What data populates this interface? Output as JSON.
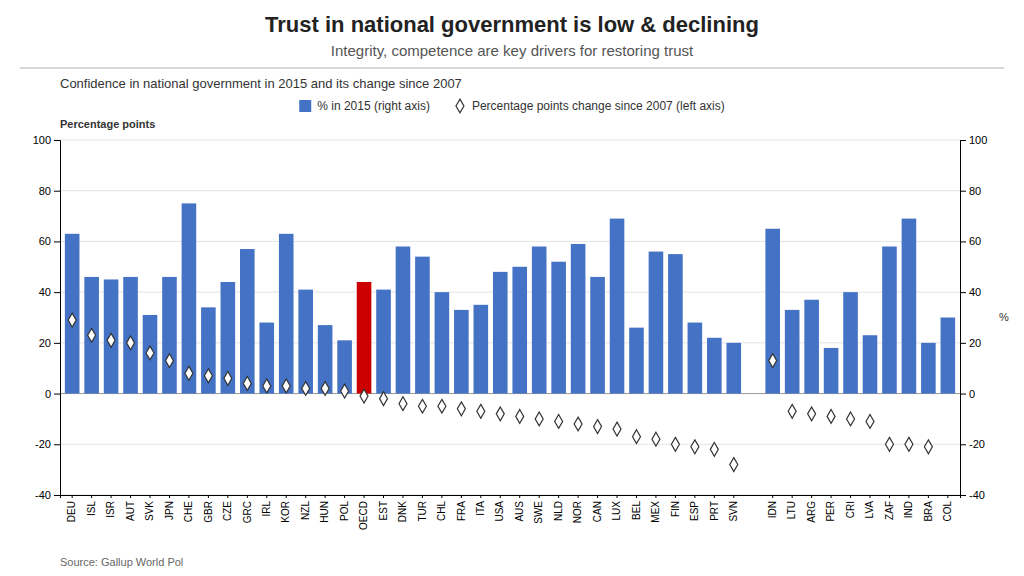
{
  "chart_data": {
    "type": "bar",
    "title": "Trust in national government is low & declining",
    "subtitle": "Integrity, competence are key drivers for restoring trust",
    "annotations": [
      "Confidence in national government in 2015 and its change since 2007",
      "Source: Gallup World Pol"
    ],
    "y_label": "Percentage points",
    "y2_label": "%",
    "categories": [
      "DEU",
      "ISL",
      "ISR",
      "AUT",
      "SVK",
      "JPN",
      "CHE",
      "GBR",
      "CZE",
      "GRC",
      "IRL",
      "KOR",
      "NZL",
      "HUN",
      "POL",
      "OECD",
      "EST",
      "DNK",
      "TUR",
      "CHL",
      "FRA",
      "ITA",
      "USA",
      "AUS",
      "SWE",
      "NLD",
      "NOR",
      "CAN",
      "LUX",
      "BEL",
      "MEX",
      "FIN",
      "ESP",
      "PRT",
      "SVN",
      null,
      "IDN",
      "LTU",
      "ARG",
      "PER",
      "CRI",
      "LVA",
      "ZAF",
      "IND",
      "BRA",
      "COL"
    ],
    "series": [
      {
        "name": "% in 2015 (right axis)",
        "type": "bar",
        "axis": "y2",
        "color": "#4472c4",
        "colors": [
          "#4472c4",
          "#4472c4",
          "#4472c4",
          "#4472c4",
          "#4472c4",
          "#4472c4",
          "#4472c4",
          "#4472c4",
          "#4472c4",
          "#4472c4",
          "#4472c4",
          "#4472c4",
          "#4472c4",
          "#4472c4",
          "#4472c4",
          "#cc0000",
          "#4472c4",
          "#4472c4",
          "#4472c4",
          "#4472c4",
          "#4472c4",
          "#4472c4",
          "#4472c4",
          "#4472c4",
          "#4472c4",
          "#4472c4",
          "#4472c4",
          "#4472c4",
          "#4472c4",
          "#4472c4",
          "#4472c4",
          "#4472c4",
          "#4472c4",
          "#4472c4",
          "#4472c4",
          "#ffffff",
          "#4472c4",
          "#4472c4",
          "#4472c4",
          "#4472c4",
          "#4472c4",
          "#4472c4",
          "#4472c4",
          "#4472c4",
          "#4472c4",
          "#4472c4"
        ],
        "values": [
          63,
          46,
          45,
          46,
          31,
          46,
          75,
          34,
          44,
          57,
          28,
          63,
          41,
          27,
          21,
          44,
          41,
          58,
          54,
          40,
          33,
          35,
          48,
          50,
          58,
          52,
          59,
          46,
          69,
          26,
          56,
          55,
          28,
          22,
          20,
          null,
          65,
          33,
          37,
          18,
          40,
          23,
          58,
          69,
          20,
          30
        ]
      },
      {
        "name": "Percentage points change since 2007 (left axis)",
        "type": "scatter",
        "axis": "y",
        "marker": "diamond",
        "color": "#333333",
        "values": [
          29,
          23,
          21,
          20,
          16,
          13,
          8,
          7,
          6,
          4,
          3,
          3,
          2,
          2,
          1,
          -1,
          -2,
          -4,
          -5,
          -5,
          -6,
          -7,
          -8,
          -9,
          -10,
          -11,
          -12,
          -13,
          -14,
          -17,
          -18,
          -20,
          -21,
          -22,
          -28,
          null,
          13,
          -7,
          -8,
          -9,
          -10,
          -11,
          -20,
          -20,
          -21,
          null
        ]
      }
    ],
    "ylim": [
      -40,
      100
    ],
    "yticks": [
      -40,
      -20,
      0,
      20,
      40,
      60,
      80,
      100
    ],
    "y2lim": [
      -40,
      100
    ],
    "y2ticks": [
      -40,
      -20,
      0,
      20,
      40,
      60,
      80,
      100
    ],
    "grid": true,
    "legend": "top"
  }
}
